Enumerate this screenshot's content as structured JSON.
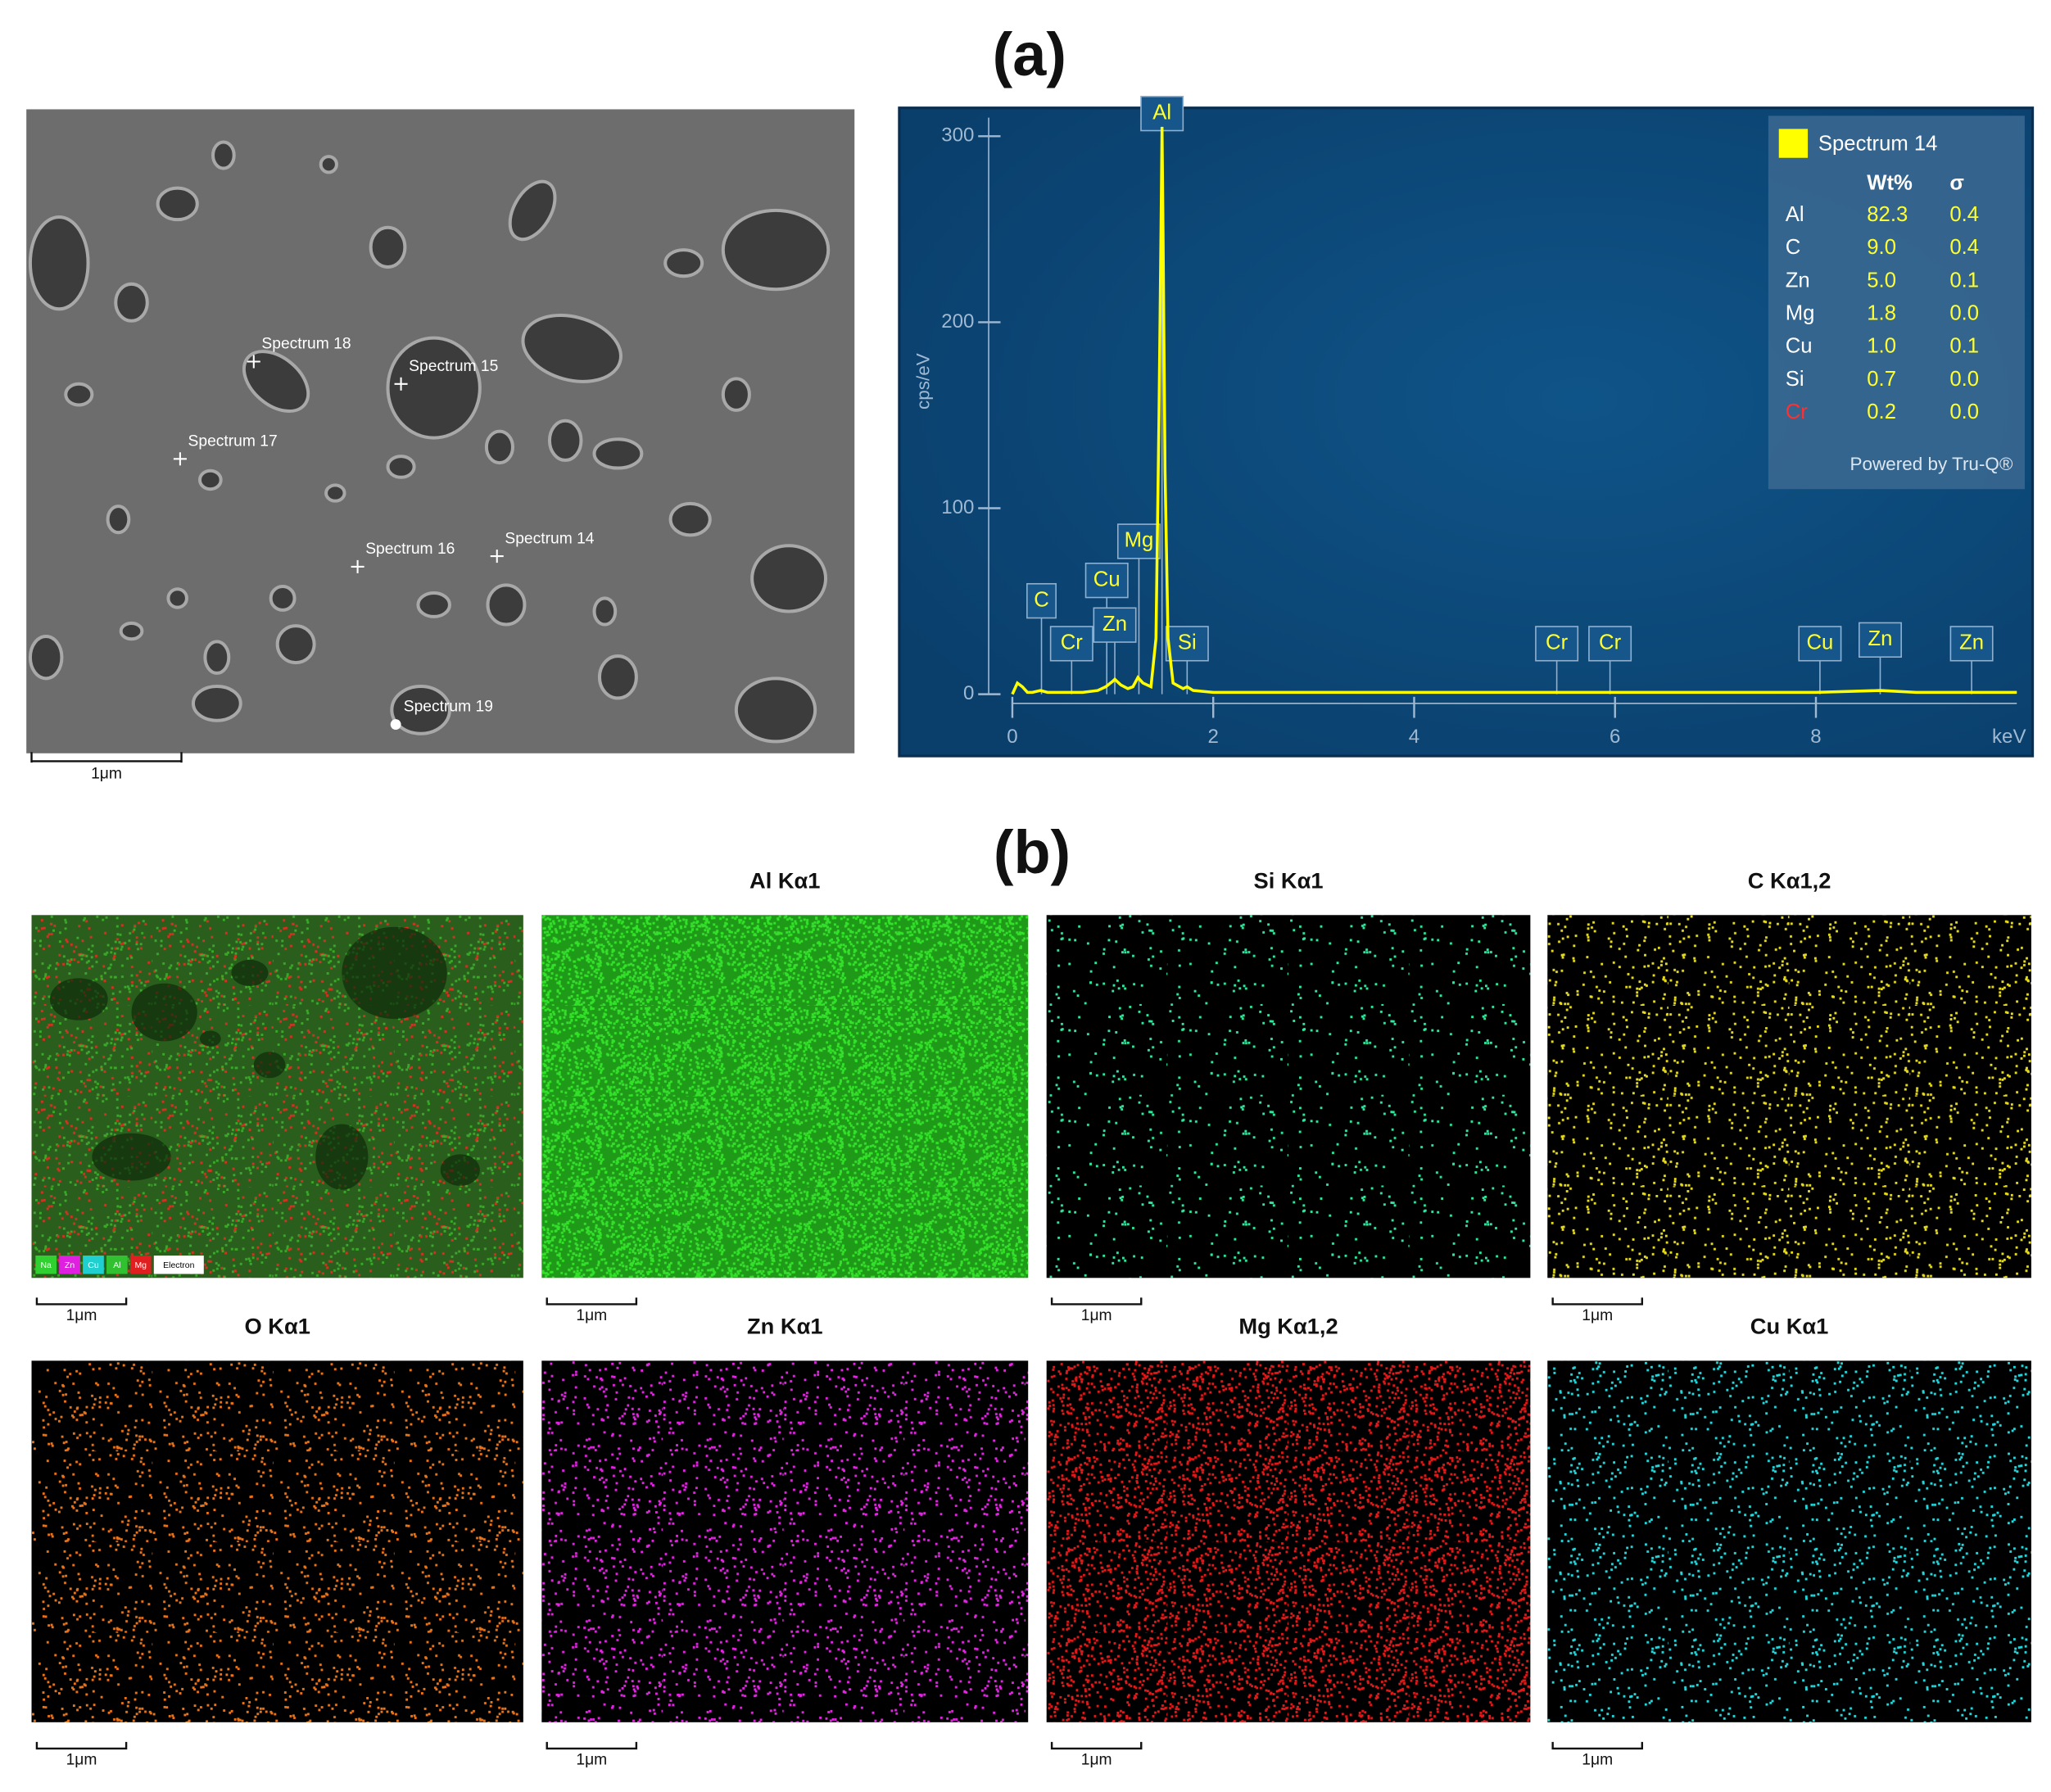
{
  "panel_labels": [
    "(a)",
    "(b)"
  ],
  "sem_image": {
    "points": [
      "Spectrum 18",
      "Spectrum 15",
      "Spectrum 17",
      "Spectrum 16",
      "Spectrum 14",
      "Spectrum 19"
    ],
    "scale_bar": "1μm"
  },
  "chart_data": {
    "type": "line",
    "x_label": "keV",
    "y_label": "cps/eV",
    "xlim": [
      0,
      10
    ],
    "ylim": [
      0,
      310
    ],
    "xticks": [
      0,
      2,
      4,
      6,
      8
    ],
    "yticks": [
      0,
      100,
      200,
      300
    ],
    "legend_position": "top-right",
    "series": [
      {
        "name": "Spectrum 14",
        "color": "#ffff00",
        "x": [
          0,
          0.05,
          0.1,
          0.15,
          0.2,
          0.28,
          0.35,
          0.5,
          0.7,
          0.85,
          0.93,
          1.0,
          1.02,
          1.08,
          1.15,
          1.2,
          1.25,
          1.3,
          1.38,
          1.43,
          1.46,
          1.48,
          1.49,
          1.5,
          1.52,
          1.55,
          1.6,
          1.7,
          1.74,
          1.8,
          2,
          3,
          4,
          5,
          6,
          7,
          8,
          8.64,
          9,
          10
        ],
        "values": [
          0,
          6,
          4,
          1,
          1,
          2,
          1,
          1,
          1,
          2,
          4,
          7,
          8,
          5,
          3,
          4,
          9,
          6,
          4,
          30,
          150,
          250,
          305,
          250,
          120,
          30,
          6,
          3,
          4,
          2,
          1,
          1,
          1,
          1,
          1,
          1,
          1,
          2,
          1,
          1
        ]
      }
    ],
    "peak_labels": [
      {
        "label": "C",
        "x": 0.29,
        "y": 41
      },
      {
        "label": "Cr",
        "x": 0.59,
        "y": 18
      },
      {
        "label": "Cu",
        "x": 0.94,
        "y": 52
      },
      {
        "label": "Zn",
        "x": 1.02,
        "y": 28
      },
      {
        "label": "Mg",
        "x": 1.26,
        "y": 73
      },
      {
        "label": "Al",
        "x": 1.49,
        "y": 303
      },
      {
        "label": "Si",
        "x": 1.74,
        "y": 18
      },
      {
        "label": "Cr",
        "x": 5.42,
        "y": 18
      },
      {
        "label": "Cr",
        "x": 5.95,
        "y": 18
      },
      {
        "label": "Cu",
        "x": 8.04,
        "y": 18
      },
      {
        "label": "Zn",
        "x": 8.64,
        "y": 20
      },
      {
        "label": "Zn",
        "x": 9.55,
        "y": 18
      }
    ],
    "legend": {
      "columns": [
        "Wt%",
        "σ"
      ],
      "rows": [
        {
          "element": "Al",
          "element_color": "#ffffff",
          "wt": "82.3",
          "sigma": "0.4"
        },
        {
          "element": "C",
          "element_color": "#ffffff",
          "wt": "9.0",
          "sigma": "0.4"
        },
        {
          "element": "Zn",
          "element_color": "#ffffff",
          "wt": "5.0",
          "sigma": "0.1"
        },
        {
          "element": "Mg",
          "element_color": "#ffffff",
          "wt": "1.8",
          "sigma": "0.0"
        },
        {
          "element": "Cu",
          "element_color": "#ffffff",
          "wt": "1.0",
          "sigma": "0.1"
        },
        {
          "element": "Si",
          "element_color": "#ffffff",
          "wt": "0.7",
          "sigma": "0.0"
        },
        {
          "element": "Cr",
          "element_color": "#ff3030",
          "wt": "0.2",
          "sigma": "0.0"
        }
      ],
      "footer": "Powered by Tru-Q®"
    }
  },
  "maps": [
    {
      "color": "#d83020",
      "scale_bar": "1μm",
      "legend": [
        {
          "label": "Na",
          "color": "#30d030"
        },
        {
          "label": "Zn",
          "color": "#e020e0"
        },
        {
          "label": "Cu",
          "color": "#20d0d0"
        },
        {
          "label": "Al",
          "color": "#30c030"
        },
        {
          "label": "Mg",
          "color": "#e02020"
        },
        {
          "label": "Electron",
          "color": "#ffffff"
        }
      ]
    },
    {
      "title": "Al Kα1",
      "color": "#33e02a",
      "scale_bar": "1μm"
    },
    {
      "title": "Si Kα1",
      "color": "#2ee89c",
      "scale_bar": "1μm"
    },
    {
      "title": "C Kα1,2",
      "color": "#e6dc1c",
      "scale_bar": "1μm"
    },
    {
      "title": "O Kα1",
      "color": "#ec7418",
      "scale_bar": "1μm"
    },
    {
      "title": "Zn Kα1",
      "color": "#e424e4",
      "scale_bar": "1μm"
    },
    {
      "title": "Mg Kα1,2",
      "color": "#e41818",
      "scale_bar": "1μm"
    },
    {
      "title": "Cu Kα1",
      "color": "#22d8dc",
      "scale_bar": "1μm"
    }
  ]
}
